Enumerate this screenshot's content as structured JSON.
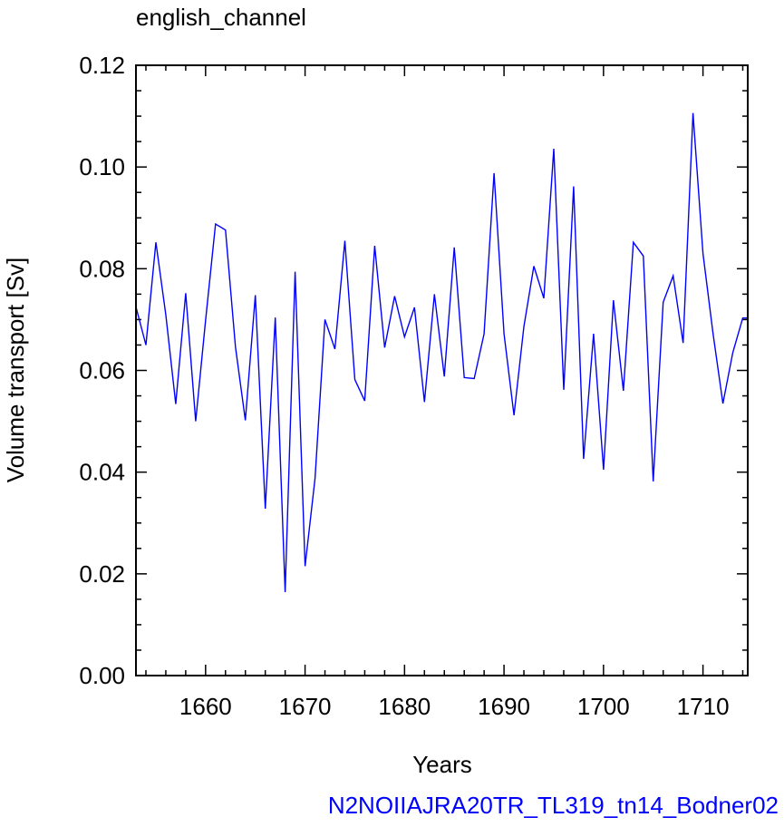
{
  "chart_data": {
    "type": "line",
    "title": "english_channel",
    "xlabel": "Years",
    "ylabel": "Volume transport [Sv]",
    "footer": "N2NOIIAJRA20TR_TL319_tn14_Bodner02",
    "xlim": [
      1653,
      1714.5
    ],
    "ylim": [
      0.0,
      0.12
    ],
    "xticks": [
      1660,
      1670,
      1680,
      1690,
      1700,
      1710
    ],
    "xtick_labels": [
      "1660",
      "1670",
      "1680",
      "1690",
      "1700",
      "1710"
    ],
    "yticks": [
      0.0,
      0.02,
      0.04,
      0.06,
      0.08,
      0.1,
      0.12
    ],
    "ytick_labels": [
      "0.00",
      "0.02",
      "0.04",
      "0.06",
      "0.08",
      "0.10",
      "0.12"
    ],
    "grid": false,
    "series": [
      {
        "color": "#0000ff",
        "x": [
          1653,
          1654,
          1655,
          1656,
          1657,
          1658,
          1659,
          1660,
          1661,
          1662,
          1663,
          1664,
          1665,
          1666,
          1667,
          1668,
          1669,
          1670,
          1671,
          1672,
          1673,
          1674,
          1675,
          1676,
          1677,
          1678,
          1679,
          1680,
          1681,
          1682,
          1683,
          1684,
          1685,
          1686,
          1687,
          1688,
          1689,
          1690,
          1691,
          1692,
          1693,
          1694,
          1695,
          1696,
          1697,
          1698,
          1699,
          1700,
          1701,
          1702,
          1703,
          1704,
          1705,
          1706,
          1707,
          1708,
          1709,
          1710,
          1711,
          1712,
          1713,
          1714,
          1714.5
        ],
        "y": [
          0.0725,
          0.065,
          0.0852,
          0.071,
          0.0534,
          0.0752,
          0.05,
          0.0698,
          0.0888,
          0.0876,
          0.0646,
          0.0502,
          0.0748,
          0.0328,
          0.0704,
          0.0164,
          0.0794,
          0.0215,
          0.0388,
          0.07,
          0.0642,
          0.0855,
          0.0582,
          0.054,
          0.0845,
          0.0645,
          0.0746,
          0.0666,
          0.0724,
          0.0538,
          0.075,
          0.0588,
          0.0842,
          0.0586,
          0.0584,
          0.0672,
          0.0988,
          0.0672,
          0.0512,
          0.0686,
          0.0805,
          0.0742,
          0.1036,
          0.0562,
          0.0962,
          0.0426,
          0.0672,
          0.0405,
          0.0738,
          0.056,
          0.0852,
          0.0825,
          0.0382,
          0.0734,
          0.0786,
          0.0654,
          0.1106,
          0.083,
          0.0674,
          0.0535,
          0.0635,
          0.0703,
          0.0703
        ]
      }
    ]
  }
}
